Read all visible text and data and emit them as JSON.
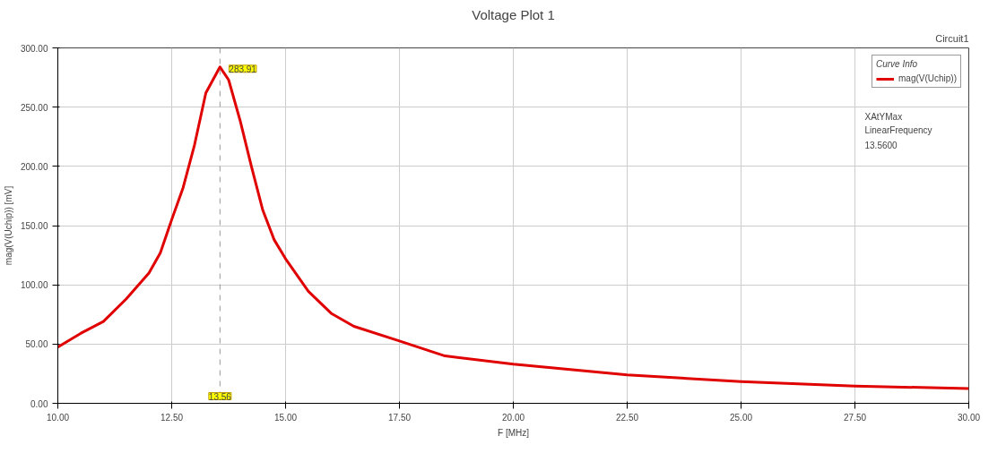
{
  "chart_data": {
    "type": "line",
    "title": "Voltage Plot 1",
    "xlabel": "F [MHz]",
    "ylabel": "mag(V(Uchip)) [mV]",
    "legend_title": "Curve Info",
    "legend": "top right",
    "grid": true,
    "line_style": "solid",
    "marker": "none",
    "xlim": [
      10,
      30
    ],
    "ylim": [
      0,
      300
    ],
    "xticks": [
      {
        "value": 10,
        "label": "10.00"
      },
      {
        "value": 12.5,
        "label": "12.50"
      },
      {
        "value": 15,
        "label": "15.00"
      },
      {
        "value": 17.5,
        "label": "17.50"
      },
      {
        "value": 20,
        "label": "20.00"
      },
      {
        "value": 22.5,
        "label": "22.50"
      },
      {
        "value": 25,
        "label": "25.00"
      },
      {
        "value": 27.5,
        "label": "27.50"
      },
      {
        "value": 30,
        "label": "30.00"
      }
    ],
    "yticks": [
      {
        "value": 0,
        "label": "0.00"
      },
      {
        "value": 50,
        "label": "50.00"
      },
      {
        "value": 100,
        "label": "100.00"
      },
      {
        "value": 150,
        "label": "150.00"
      },
      {
        "value": 200,
        "label": "200.00"
      },
      {
        "value": 250,
        "label": "250.00"
      },
      {
        "value": 300,
        "label": "300.00"
      }
    ],
    "x": [
      10,
      10.5,
      11,
      11.5,
      12,
      12.25,
      12.5,
      12.75,
      13,
      13.25,
      13.56,
      13.75,
      14,
      14.25,
      14.5,
      14.75,
      15,
      15.5,
      16,
      16.5,
      17.5,
      18.5,
      20,
      22.5,
      25,
      27.5,
      30
    ],
    "series": [
      {
        "name": "mag(V(Uchip))",
        "color": "#e00000",
        "values": [
          47.5,
          59,
          69,
          88,
          110,
          127,
          155,
          182,
          218,
          262,
          283.91,
          273,
          239,
          200,
          163,
          138,
          122,
          94.5,
          76,
          65,
          52.6,
          40,
          33,
          24,
          18.4,
          14.6,
          12.4
        ]
      }
    ],
    "ref_lines": [
      {
        "axis": "x",
        "value": 13.56,
        "label": "13.56",
        "color": "#999999",
        "line_style": "dashed"
      }
    ],
    "annotations": [
      "Circuit1",
      "XAtYMax",
      "LinearFrequency",
      "13.5600",
      {
        "text": "283.91",
        "x": 13.56,
        "y": 283.91
      }
    ]
  }
}
